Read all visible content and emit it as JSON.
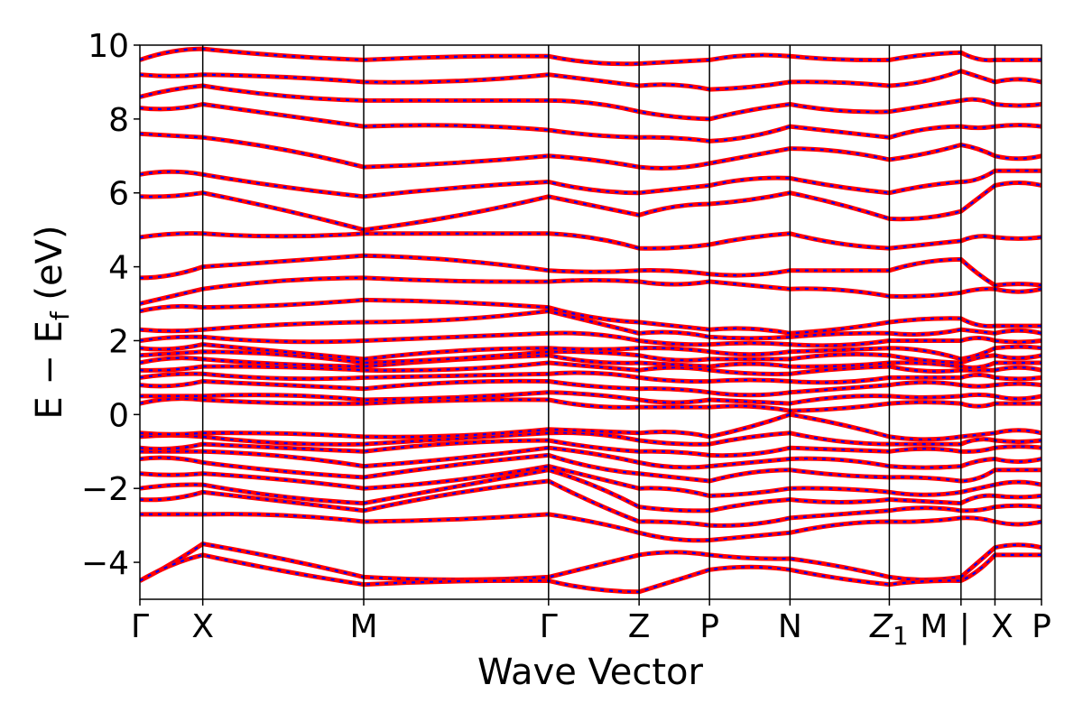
{
  "chart_data": {
    "type": "line",
    "title": "",
    "xlabel": "Wave Vector",
    "ylabel": "E − E",
    "ylabel_subscript": "f",
    "ylabel_unit": " (eV)",
    "ylim": [
      -5,
      10
    ],
    "y_ticks": [
      "−4",
      "−2",
      "0",
      "2",
      "4",
      "6",
      "8",
      "10"
    ],
    "y_tick_values": [
      -4,
      -2,
      0,
      2,
      4,
      6,
      8,
      10
    ],
    "x_path": [
      {
        "label": "Γ",
        "x": 0.0
      },
      {
        "label": "X",
        "x": 0.5
      },
      {
        "label": "M",
        "x": 1.78
      },
      {
        "label": "Γ",
        "x": 3.25
      },
      {
        "label": "Z",
        "x": 3.97
      },
      {
        "label": "P",
        "x": 4.53
      },
      {
        "label": "N",
        "x": 5.17
      },
      {
        "label": "Z",
        "label_sub": "1",
        "x": 5.96
      },
      {
        "label": "M",
        "x": 6.53
      },
      {
        "label": "|",
        "x": 6.53
      },
      {
        "label": "X",
        "x": 6.8
      },
      {
        "label": "P",
        "x": 7.17
      }
    ],
    "xlim": [
      0,
      7.17
    ],
    "grid": false,
    "legend": "none",
    "series": [
      {
        "style": "solid",
        "color": "#ff0000"
      },
      {
        "style": "dashed",
        "color": "#0000ff"
      }
    ],
    "bands": [
      {
        "y": [
          -4.5,
          -3.5,
          -4.4,
          -4.4,
          -3.8,
          -3.8,
          -3.9,
          -4.4,
          -4.4,
          -3.6,
          -3.6
        ]
      },
      {
        "y": [
          -4.5,
          -3.8,
          -4.6,
          -4.5,
          -4.8,
          -4.2,
          -4.2,
          -4.6,
          -4.5,
          -3.8,
          -3.8
        ]
      },
      {
        "y": [
          -2.7,
          -2.7,
          -2.9,
          -2.7,
          -3.2,
          -3.4,
          -3.2,
          -2.9,
          -2.8,
          -2.9,
          -2.9
        ]
      },
      {
        "y": [
          -2.3,
          -2.1,
          -2.6,
          -1.8,
          -2.9,
          -3.0,
          -2.8,
          -2.6,
          -2.6,
          -2.5,
          -2.5
        ]
      },
      {
        "y": [
          -2.0,
          -1.9,
          -2.4,
          -1.5,
          -2.5,
          -2.6,
          -2.3,
          -2.3,
          -2.4,
          -2.2,
          -2.2
        ]
      },
      {
        "y": [
          -1.6,
          -1.6,
          -2.0,
          -1.4,
          -2.0,
          -2.2,
          -2.0,
          -2.1,
          -2.1,
          -1.9,
          -1.9
        ]
      },
      {
        "y": [
          -1.2,
          -1.3,
          -1.7,
          -1.1,
          -1.6,
          -1.8,
          -1.5,
          -1.7,
          -1.8,
          -1.5,
          -1.5
        ]
      },
      {
        "y": [
          -1.0,
          -1.0,
          -1.4,
          -0.9,
          -1.3,
          -1.4,
          -1.2,
          -1.4,
          -1.4,
          -1.2,
          -1.2
        ]
      },
      {
        "y": [
          -0.9,
          -0.8,
          -1.0,
          -0.7,
          -1.0,
          -1.1,
          -0.9,
          -1.0,
          -1.0,
          -0.9,
          -0.9
        ]
      },
      {
        "y": [
          -0.6,
          -0.6,
          -0.8,
          -0.5,
          -0.7,
          -0.8,
          -0.5,
          -0.8,
          -0.8,
          -0.7,
          -0.7
        ]
      },
      {
        "y": [
          -0.5,
          -0.5,
          -0.6,
          -0.4,
          -0.5,
          -0.6,
          0.0,
          -0.6,
          -0.6,
          -0.5,
          -0.5
        ]
      },
      {
        "y": [
          0.3,
          0.4,
          0.3,
          0.4,
          0.2,
          0.2,
          0.1,
          0.3,
          0.3,
          0.3,
          0.3
        ]
      },
      {
        "y": [
          0.5,
          0.5,
          0.4,
          0.6,
          0.4,
          0.4,
          0.3,
          0.5,
          0.5,
          0.5,
          0.5
        ]
      },
      {
        "y": [
          0.8,
          0.9,
          0.7,
          0.9,
          0.7,
          0.6,
          0.6,
          0.8,
          0.8,
          0.8,
          0.8
        ]
      },
      {
        "y": [
          1.0,
          1.1,
          1.0,
          1.1,
          1.0,
          0.9,
          0.9,
          1.0,
          1.0,
          1.0,
          1.0
        ]
      },
      {
        "y": [
          1.2,
          1.3,
          1.2,
          1.4,
          1.2,
          1.2,
          1.1,
          1.3,
          1.2,
          1.2,
          1.2
        ]
      },
      {
        "y": [
          1.4,
          1.5,
          1.3,
          1.6,
          1.4,
          1.3,
          1.3,
          1.4,
          1.3,
          1.4,
          1.4
        ]
      },
      {
        "y": [
          1.6,
          1.7,
          1.4,
          1.7,
          1.6,
          1.5,
          1.5,
          1.6,
          1.4,
          1.6,
          1.6
        ]
      },
      {
        "y": [
          1.8,
          1.9,
          1.5,
          1.8,
          1.8,
          1.7,
          1.7,
          1.8,
          1.5,
          1.8,
          1.8
        ]
      },
      {
        "y": [
          2.0,
          2.1,
          2.0,
          2.2,
          2.0,
          1.9,
          1.9,
          2.0,
          2.0,
          2.0,
          2.0
        ]
      },
      {
        "y": [
          2.3,
          2.3,
          2.5,
          2.8,
          2.2,
          2.1,
          2.1,
          2.2,
          2.3,
          2.2,
          2.2
        ]
      },
      {
        "y": [
          2.8,
          2.9,
          3.1,
          2.9,
          2.5,
          2.3,
          2.2,
          2.5,
          2.6,
          2.4,
          2.4
        ]
      },
      {
        "y": [
          3.0,
          3.4,
          3.7,
          3.6,
          3.6,
          3.6,
          3.4,
          3.2,
          3.3,
          3.4,
          3.4
        ]
      },
      {
        "y": [
          3.7,
          4.0,
          4.3,
          3.9,
          3.9,
          3.8,
          3.9,
          3.9,
          4.2,
          3.5,
          3.5
        ]
      },
      {
        "y": [
          4.8,
          4.9,
          4.9,
          4.9,
          4.5,
          4.6,
          4.9,
          4.5,
          4.7,
          4.8,
          4.8
        ]
      },
      {
        "y": [
          5.9,
          6.0,
          5.0,
          5.9,
          5.4,
          5.7,
          6.0,
          5.3,
          5.5,
          6.2,
          6.2
        ]
      },
      {
        "y": [
          6.5,
          6.5,
          5.9,
          6.3,
          6.0,
          6.2,
          6.4,
          6.0,
          6.3,
          6.6,
          6.6
        ]
      },
      {
        "y": [
          7.6,
          7.5,
          6.7,
          7.0,
          6.7,
          6.8,
          7.2,
          6.9,
          7.3,
          7.0,
          7.0
        ]
      },
      {
        "y": [
          8.3,
          8.4,
          7.8,
          7.7,
          7.5,
          7.4,
          7.8,
          7.5,
          7.8,
          7.8,
          7.8
        ]
      },
      {
        "y": [
          8.6,
          8.9,
          8.5,
          8.5,
          8.2,
          8.0,
          8.4,
          8.2,
          8.5,
          8.4,
          8.4
        ]
      },
      {
        "y": [
          9.2,
          9.2,
          9.0,
          9.2,
          8.9,
          8.8,
          9.0,
          8.9,
          9.3,
          9.0,
          9.0
        ]
      },
      {
        "y": [
          9.6,
          9.9,
          9.6,
          9.7,
          9.5,
          9.6,
          9.7,
          9.6,
          9.8,
          9.6,
          9.6
        ]
      }
    ]
  }
}
